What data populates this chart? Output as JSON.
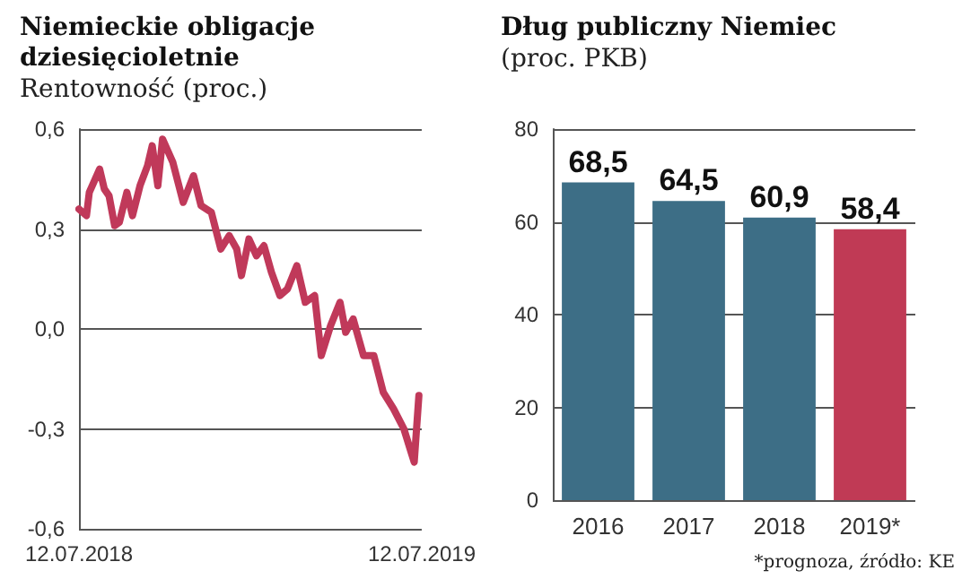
{
  "chart_data": [
    {
      "type": "line",
      "title": "Niemieckie obligacje dziesięcioletnie",
      "subtitle": "Rentowność (proc.)",
      "color": "#c0395a",
      "x": [
        "2018-07-12",
        "2018-07-20",
        "2018-07-23",
        "2018-08-03",
        "2018-08-08",
        "2018-08-13",
        "2018-08-19",
        "2018-08-24",
        "2018-09-01",
        "2018-09-07",
        "2018-09-15",
        "2018-09-23",
        "2018-09-28",
        "2018-10-04",
        "2018-10-09",
        "2018-10-20",
        "2018-10-31",
        "2018-11-11",
        "2018-11-19",
        "2018-11-30",
        "2018-12-10",
        "2018-12-19",
        "2018-12-27",
        "2019-01-01",
        "2019-01-09",
        "2019-01-17",
        "2019-01-25",
        "2019-02-02",
        "2019-02-11",
        "2019-02-19",
        "2019-03-01",
        "2019-03-10",
        "2019-03-20",
        "2019-03-27",
        "2019-04-06",
        "2019-04-16",
        "2019-04-22",
        "2019-04-30",
        "2019-05-11",
        "2019-05-22",
        "2019-06-01",
        "2019-06-12",
        "2019-06-23",
        "2019-07-04",
        "2019-07-09"
      ],
      "values": [
        0.36,
        0.34,
        0.41,
        0.48,
        0.42,
        0.4,
        0.31,
        0.32,
        0.41,
        0.34,
        0.43,
        0.49,
        0.55,
        0.43,
        0.57,
        0.5,
        0.38,
        0.46,
        0.37,
        0.35,
        0.24,
        0.28,
        0.24,
        0.16,
        0.27,
        0.22,
        0.25,
        0.17,
        0.1,
        0.12,
        0.19,
        0.08,
        0.1,
        -0.08,
        0.01,
        0.08,
        -0.01,
        0.03,
        -0.08,
        -0.08,
        -0.19,
        -0.24,
        -0.3,
        -0.4,
        -0.2
      ],
      "xlim": [
        "2018-07-12",
        "2019-07-12"
      ],
      "xticks": [
        {
          "value": "2018-07-12",
          "label": "12.07.2018"
        },
        {
          "value": "2019-07-12",
          "label": "12.07.2019"
        }
      ],
      "ylim": [
        -0.6,
        0.6
      ],
      "yticks": [
        {
          "value": -0.6,
          "label": "-0,6"
        },
        {
          "value": -0.3,
          "label": "-0,3"
        },
        {
          "value": 0,
          "label": "0,0"
        },
        {
          "value": 0.3,
          "label": "0,3"
        },
        {
          "value": 0.6,
          "label": "0,6"
        }
      ],
      "grid": "y"
    },
    {
      "type": "bar",
      "title": "Dług publiczny Niemiec",
      "subtitle": "(proc. PKB)",
      "categories": [
        "2016",
        "2017",
        "2018",
        "2019*"
      ],
      "values": [
        68.5,
        64.5,
        60.9,
        58.4
      ],
      "colors": [
        "#3d6e86",
        "#3d6e86",
        "#3d6e86",
        "#c03a55"
      ],
      "value_labels": [
        "68,5",
        "64,5",
        "60,9",
        "58,4"
      ],
      "ylim": [
        0,
        80
      ],
      "yticks": [
        0,
        20,
        40,
        60,
        80
      ],
      "grid": "y",
      "annotations": [
        "*prognoza, źródło: KE"
      ]
    }
  ]
}
